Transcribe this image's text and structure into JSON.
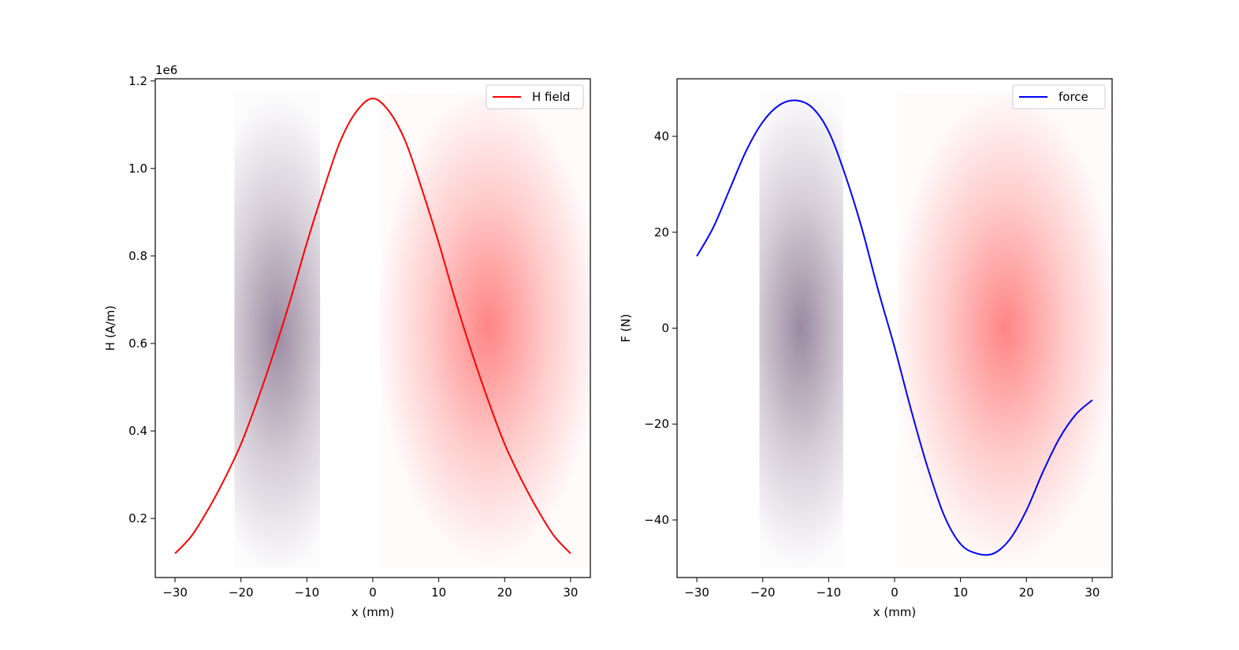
{
  "chart_data": [
    {
      "type": "line",
      "xlabel": "x (mm)",
      "ylabel": "H (A/m)",
      "y_offset_label": "1e6",
      "xlim": [
        -33,
        33
      ],
      "ylim": [
        0.065,
        1.205
      ],
      "xticks": [
        -30,
        -20,
        -10,
        0,
        10,
        20,
        30
      ],
      "xtick_labels": [
        "−30",
        "−20",
        "−10",
        "0",
        "10",
        "20",
        "30"
      ],
      "yticks": [
        0.2,
        0.4,
        0.6,
        0.8,
        1.0,
        1.2
      ],
      "ytick_labels": [
        "0.2",
        "0.4",
        "0.6",
        "0.8",
        "1.0",
        "1.2"
      ],
      "legend_position": "top-right",
      "series": [
        {
          "name": "H field",
          "color": "#ff0000",
          "x": [
            -30,
            -27.5,
            -25,
            -22.5,
            -20,
            -17.5,
            -15,
            -12.5,
            -10,
            -7.5,
            -5,
            -2.5,
            0,
            2.5,
            5,
            7.5,
            10,
            12.5,
            15,
            17.5,
            20,
            22.5,
            25,
            27.5,
            30
          ],
          "y": [
            0.12,
            0.16,
            0.22,
            0.29,
            0.37,
            0.47,
            0.58,
            0.7,
            0.83,
            0.95,
            1.06,
            1.13,
            1.16,
            1.13,
            1.06,
            0.95,
            0.83,
            0.7,
            0.58,
            0.47,
            0.37,
            0.29,
            0.22,
            0.16,
            0.12
          ]
        }
      ],
      "regions": [
        {
          "x0": -21,
          "x1": -8,
          "center_x": -14.5,
          "center_y": 0.62,
          "color": "#8a7590"
        },
        {
          "x0": 1,
          "x1": 33,
          "center_x": 17.5,
          "center_y": 0.64,
          "color": "#ff6f6f"
        }
      ]
    },
    {
      "type": "line",
      "xlabel": "x (mm)",
      "ylabel": "F (N)",
      "xlim": [
        -33,
        33
      ],
      "ylim": [
        -52,
        52
      ],
      "xticks": [
        -30,
        -20,
        -10,
        0,
        10,
        20,
        30
      ],
      "xtick_labels": [
        "−30",
        "−20",
        "−10",
        "0",
        "10",
        "20",
        "30"
      ],
      "yticks": [
        -40,
        -20,
        0,
        20,
        40
      ],
      "ytick_labels": [
        "−40",
        "−20",
        "0",
        "20",
        "40"
      ],
      "legend_position": "top-right",
      "series": [
        {
          "name": "force",
          "color": "#0000ff",
          "x": [
            -30,
            -27.5,
            -25,
            -22.5,
            -20,
            -17.5,
            -15,
            -12.5,
            -10,
            -7.5,
            -5,
            -2.5,
            0,
            2.5,
            5,
            7.5,
            10,
            12.5,
            15,
            17.5,
            20,
            22.5,
            25,
            27.5,
            30
          ],
          "y": [
            15,
            21,
            29,
            37,
            43,
            46.5,
            47.5,
            46,
            41,
            32,
            21,
            8,
            -4,
            -17,
            -29,
            -39,
            -45,
            -47,
            -47,
            -44,
            -38,
            -30,
            -23,
            -18,
            -15
          ]
        }
      ],
      "regions": [
        {
          "x0": -20.5,
          "x1": -7.8,
          "center_x": -14.2,
          "center_y": 0,
          "color": "#8a7590"
        },
        {
          "x0": 0.5,
          "x1": 33,
          "center_x": 16.8,
          "center_y": 0,
          "color": "#ff6f6f"
        }
      ]
    }
  ]
}
